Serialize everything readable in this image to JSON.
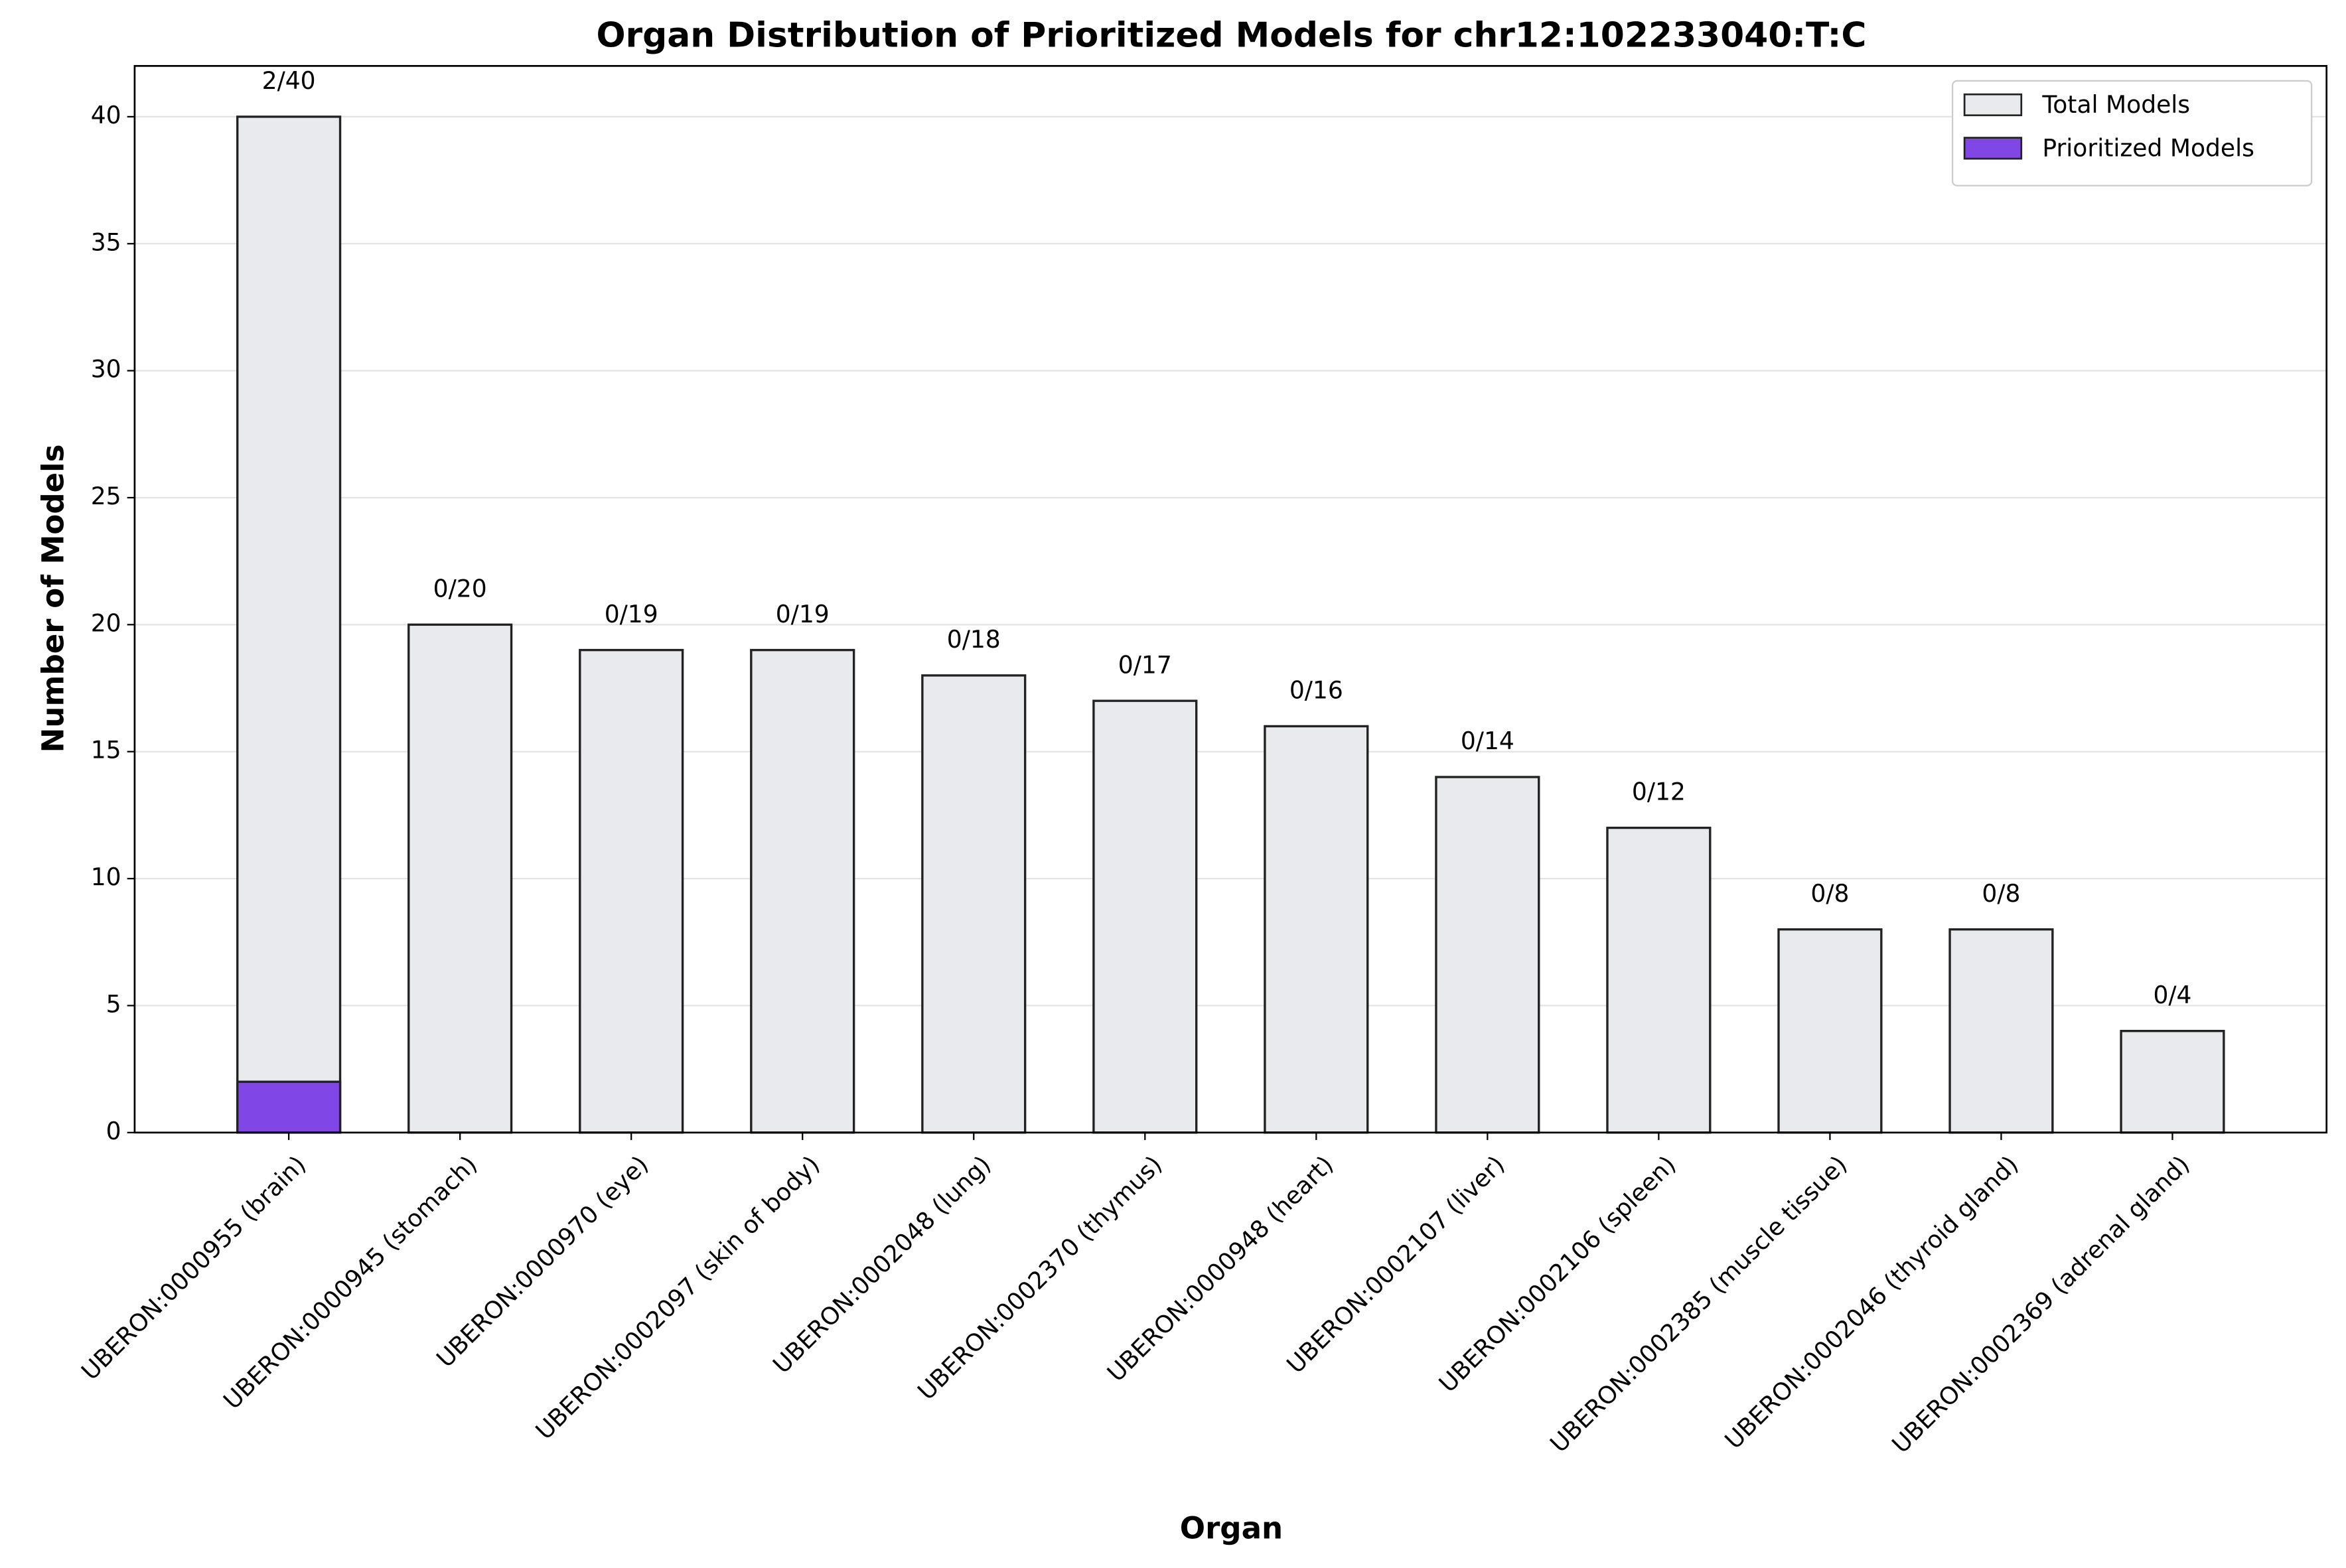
{
  "chart_data": {
    "type": "bar",
    "title": "Organ Distribution of Prioritized Models for chr12:102233040:T:C",
    "xlabel": "Organ",
    "ylabel": "Number of Models",
    "categories": [
      "UBERON:0000955 (brain)",
      "UBERON:0000945 (stomach)",
      "UBERON:0000970 (eye)",
      "UBERON:0002097 (skin of body)",
      "UBERON:0002048 (lung)",
      "UBERON:0002370 (thymus)",
      "UBERON:0000948 (heart)",
      "UBERON:0002107 (liver)",
      "UBERON:0002106 (spleen)",
      "UBERON:0002385 (muscle tissue)",
      "UBERON:0002046 (thyroid gland)",
      "UBERON:0002369 (adrenal gland)"
    ],
    "series": [
      {
        "name": "Total Models",
        "color": "#e9eaed",
        "values": [
          40,
          20,
          19,
          19,
          18,
          17,
          16,
          14,
          12,
          8,
          8,
          4
        ],
        "value_labels": [
          "2/40",
          "0/20",
          "0/19",
          "0/19",
          "0/18",
          "0/17",
          "0/16",
          "0/14",
          "0/12",
          "0/8",
          "0/8",
          "0/4"
        ]
      },
      {
        "name": "Prioritized Models",
        "color": "#8147e6",
        "values": [
          2,
          0,
          0,
          0,
          0,
          0,
          0,
          0,
          0,
          0,
          0,
          0
        ]
      }
    ],
    "ylim": [
      0,
      42
    ],
    "yticks": [
      0,
      5,
      10,
      15,
      20,
      25,
      30,
      35,
      40
    ],
    "grid": true,
    "legend": "upper right"
  }
}
